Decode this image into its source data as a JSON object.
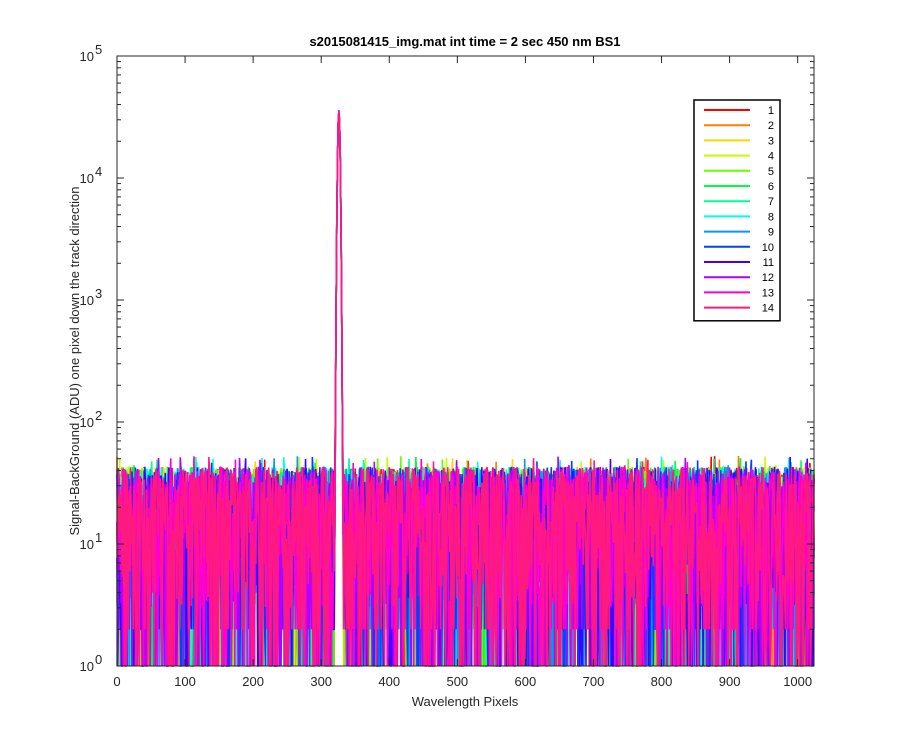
{
  "chart_data": {
    "type": "line",
    "title": "s2015081415_img.mat int time = 2 sec  450 nm BS1",
    "xlabel": "Wavelength Pixels",
    "ylabel": "Signal-BackGround (ADU) one pixel down the track direction",
    "xlim": [
      0,
      1024
    ],
    "ylim": [
      1,
      100000
    ],
    "yscale": "log",
    "x_ticks": [
      0,
      100,
      200,
      300,
      400,
      500,
      600,
      700,
      800,
      900,
      1000
    ],
    "y_ticks": [
      {
        "value": 1,
        "base": "10",
        "exp": "0"
      },
      {
        "value": 10,
        "base": "10",
        "exp": "1"
      },
      {
        "value": 100,
        "base": "10",
        "exp": "2"
      },
      {
        "value": 1000,
        "base": "10",
        "exp": "3"
      },
      {
        "value": 10000,
        "base": "10",
        "exp": "4"
      },
      {
        "value": 100000,
        "base": "10",
        "exp": "5"
      }
    ],
    "grid": false,
    "legend_position": "top-right",
    "noise_range": [
      1,
      50
    ],
    "peak": {
      "x": 326,
      "y": 36000,
      "series": "12"
    },
    "series": [
      {
        "name": "1",
        "color": "#ff0000"
      },
      {
        "name": "2",
        "color": "#ff7f00"
      },
      {
        "name": "3",
        "color": "#ffd700"
      },
      {
        "name": "4",
        "color": "#c8ff00"
      },
      {
        "name": "5",
        "color": "#66ff00"
      },
      {
        "name": "6",
        "color": "#00ff40"
      },
      {
        "name": "7",
        "color": "#00ff99"
      },
      {
        "name": "8",
        "color": "#00ffee"
      },
      {
        "name": "9",
        "color": "#0099ff"
      },
      {
        "name": "10",
        "color": "#0040ff"
      },
      {
        "name": "11",
        "color": "#4000ff"
      },
      {
        "name": "12",
        "color": "#b000ff"
      },
      {
        "name": "13",
        "color": "#ff00d0"
      },
      {
        "name": "14",
        "color": "#ff1a80"
      }
    ]
  }
}
